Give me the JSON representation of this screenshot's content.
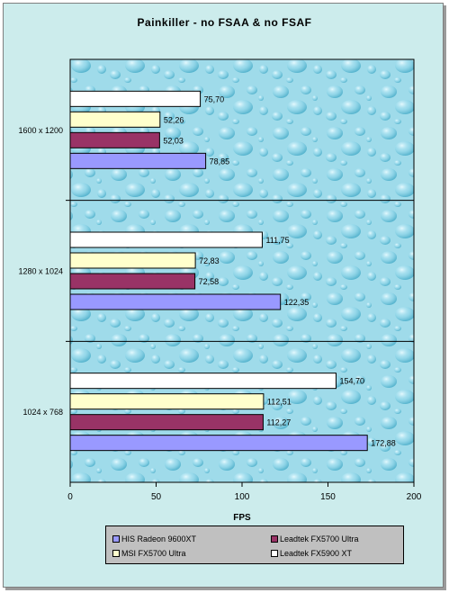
{
  "chart_data": {
    "type": "bar",
    "orientation": "horizontal",
    "title": "Painkiller - no FSAA & no FSAF",
    "xlabel": "FPS",
    "ylabel": "",
    "xlim": [
      0,
      200
    ],
    "x_ticks": [
      "0",
      "50",
      "100",
      "150",
      "200"
    ],
    "grid": false,
    "legend_position": "bottom",
    "categories": [
      "1600 x 1200",
      "1280 x 1024",
      "1024 x 768"
    ],
    "series": [
      {
        "name": "HIS Radeon 9600XT",
        "color": "#9999ff",
        "values": [
          78.85,
          122.35,
          172.88
        ],
        "labels": [
          "78,85",
          "122,35",
          "172,88"
        ]
      },
      {
        "name": "Leadtek FX5700 Ultra",
        "color": "#993366",
        "values": [
          52.03,
          72.58,
          112.27
        ],
        "labels": [
          "52,03",
          "72,58",
          "112,27"
        ]
      },
      {
        "name": "MSI FX5700 Ultra",
        "color": "#ffffcc",
        "values": [
          52.26,
          72.83,
          112.51
        ],
        "labels": [
          "52,26",
          "72,83",
          "112,51"
        ]
      },
      {
        "name": "Leadtek FX5900 XT",
        "color": "#ffffff",
        "values": [
          75.7,
          111.75,
          154.7
        ],
        "labels": [
          "75,70",
          "111,75",
          "154,70"
        ]
      }
    ]
  }
}
